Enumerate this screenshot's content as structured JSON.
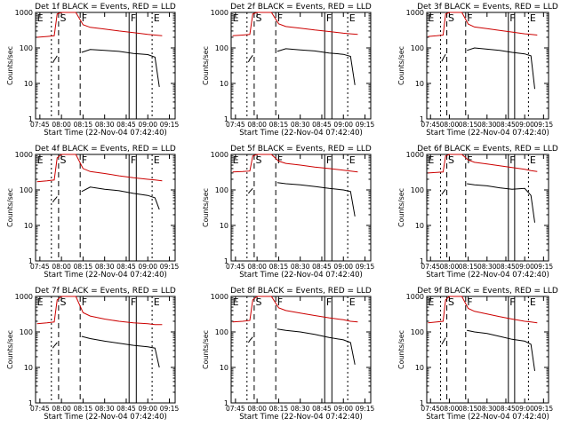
{
  "chart_data": [
    {
      "type": "line",
      "title": "Det 1f BLACK = Events, RED = LLD",
      "xlabel": "Start Time (22-Nov-04 07:42:40)",
      "ylabel": "Counts/sec",
      "ylog": true,
      "ylim": [
        1,
        1000
      ],
      "xticks": [
        "07:45",
        "08:00",
        "08:15",
        "08:30",
        "08:45",
        "09:00",
        "09:15"
      ],
      "yticks": [
        "1",
        "10",
        "100",
        "1000"
      ],
      "regions": [
        "E",
        "S",
        "F",
        "F",
        "E"
      ],
      "series": [
        {
          "color": "#000000",
          "x": [
            "07:54",
            "07:55",
            "07:56",
            "07:57"
          ],
          "y": [
            38,
            45,
            52,
            60
          ]
        },
        {
          "color": "#000000",
          "x": [
            "08:14",
            "08:20",
            "08:30",
            "08:40",
            "08:50",
            "09:00",
            "09:05",
            "09:08"
          ],
          "y": [
            75,
            90,
            85,
            80,
            70,
            65,
            55,
            8
          ]
        },
        {
          "color": "#cc0000",
          "x": [
            "07:43",
            "07:50",
            "07:55",
            "07:57",
            "08:00",
            "08:05",
            "08:10",
            "08:15",
            "08:20",
            "08:30",
            "08:40",
            "08:50",
            "09:00",
            "09:05",
            "09:10"
          ],
          "y": [
            200,
            210,
            220,
            900,
            1000,
            1000,
            1000,
            450,
            380,
            340,
            300,
            270,
            240,
            230,
            220
          ]
        }
      ]
    },
    {
      "type": "line",
      "title": "Det 2f BLACK = Events, RED = LLD",
      "xlabel": "Start Time (22-Nov-04 07:42:40)",
      "ylabel": "Counts/sec",
      "ylog": true,
      "ylim": [
        1,
        1000
      ],
      "xticks": [
        "07:45",
        "08:00",
        "08:15",
        "08:30",
        "08:45",
        "09:00",
        "09:15"
      ],
      "yticks": [
        "1",
        "10",
        "100",
        "1000"
      ],
      "regions": [
        "E",
        "S",
        "F",
        "F",
        "E"
      ],
      "series": [
        {
          "color": "#000000",
          "x": [
            "07:54",
            "07:55",
            "07:56",
            "07:57"
          ],
          "y": [
            40,
            48,
            55,
            62
          ]
        },
        {
          "color": "#000000",
          "x": [
            "08:14",
            "08:20",
            "08:30",
            "08:40",
            "08:50",
            "09:00",
            "09:05",
            "09:08"
          ],
          "y": [
            80,
            95,
            88,
            82,
            72,
            66,
            58,
            9
          ]
        },
        {
          "color": "#cc0000",
          "x": [
            "07:43",
            "07:50",
            "07:55",
            "07:57",
            "08:00",
            "08:05",
            "08:10",
            "08:15",
            "08:20",
            "08:30",
            "08:40",
            "08:50",
            "09:00",
            "09:05",
            "09:10"
          ],
          "y": [
            220,
            230,
            240,
            900,
            1000,
            1000,
            1000,
            480,
            400,
            360,
            320,
            290,
            260,
            250,
            240
          ]
        }
      ]
    },
    {
      "type": "line",
      "title": "Det 3f BLACK = Events, RED = LLD",
      "xlabel": "Start Time (22-Nov-04 07:42:40)",
      "ylabel": "Counts/sec",
      "ylog": true,
      "ylim": [
        1,
        1000
      ],
      "xticks": [
        "07:45",
        "08:00",
        "08:15",
        "08:30",
        "08:45",
        "09:00",
        "09:15"
      ],
      "yticks": [
        "1",
        "10",
        "100",
        "1000"
      ],
      "regions": [
        "E",
        "S",
        "F",
        "F",
        "E"
      ],
      "series": [
        {
          "color": "#000000",
          "x": [
            "07:54",
            "07:55",
            "07:56",
            "07:57"
          ],
          "y": [
            42,
            50,
            58,
            66
          ]
        },
        {
          "color": "#000000",
          "x": [
            "08:14",
            "08:20",
            "08:30",
            "08:40",
            "08:50",
            "09:00",
            "09:05",
            "09:08"
          ],
          "y": [
            85,
            100,
            92,
            85,
            75,
            68,
            60,
            7
          ]
        },
        {
          "color": "#cc0000",
          "x": [
            "07:43",
            "07:50",
            "07:55",
            "07:57",
            "08:00",
            "08:05",
            "08:10",
            "08:15",
            "08:20",
            "08:30",
            "08:40",
            "08:50",
            "09:00",
            "09:05",
            "09:10"
          ],
          "y": [
            210,
            220,
            230,
            900,
            1000,
            1000,
            1000,
            470,
            390,
            350,
            310,
            280,
            250,
            240,
            230
          ]
        }
      ]
    },
    {
      "type": "line",
      "title": "Det 4f BLACK = Events, RED = LLD",
      "xlabel": "Start Time (22-Nov-04 07:42:40)",
      "ylabel": "Counts/sec",
      "ylog": true,
      "ylim": [
        1,
        1000
      ],
      "xticks": [
        "07:45",
        "08:00",
        "08:15",
        "08:30",
        "08:45",
        "09:00",
        "09:15"
      ],
      "yticks": [
        "1",
        "10",
        "100",
        "1000"
      ],
      "regions": [
        "E",
        "S",
        "F",
        "F",
        "E"
      ],
      "series": [
        {
          "color": "#000000",
          "x": [
            "07:54",
            "07:55",
            "07:56",
            "07:57"
          ],
          "y": [
            45,
            52,
            58,
            65
          ]
        },
        {
          "color": "#000000",
          "x": [
            "08:14",
            "08:20",
            "08:30",
            "08:40",
            "08:50",
            "09:00",
            "09:05",
            "09:08"
          ],
          "y": [
            90,
            120,
            105,
            95,
            80,
            70,
            60,
            28
          ]
        },
        {
          "color": "#cc0000",
          "x": [
            "07:43",
            "07:50",
            "07:55",
            "07:57",
            "08:00",
            "08:05",
            "08:10",
            "08:15",
            "08:20",
            "08:30",
            "08:40",
            "08:50",
            "09:00",
            "09:05",
            "09:10"
          ],
          "y": [
            170,
            180,
            190,
            800,
            1000,
            1000,
            1000,
            400,
            330,
            290,
            250,
            220,
            200,
            190,
            180
          ]
        }
      ]
    },
    {
      "type": "line",
      "title": "Det 5f BLACK = Events, RED = LLD",
      "xlabel": "Start Time (22-Nov-04 07:42:40)",
      "ylabel": "Counts/sec",
      "ylog": true,
      "ylim": [
        1,
        1000
      ],
      "xticks": [
        "07:45",
        "08:00",
        "08:15",
        "08:30",
        "08:45",
        "09:00",
        "09:15"
      ],
      "yticks": [
        "1",
        "10",
        "100",
        "1000"
      ],
      "regions": [
        "E",
        "S",
        "F",
        "F",
        "E"
      ],
      "series": [
        {
          "color": "#000000",
          "x": [
            "07:54",
            "07:55",
            "07:56",
            "07:57"
          ],
          "y": [
            80,
            90,
            100,
            110
          ]
        },
        {
          "color": "#000000",
          "x": [
            "08:14",
            "08:20",
            "08:30",
            "08:40",
            "08:50",
            "09:00",
            "09:05",
            "09:08"
          ],
          "y": [
            160,
            150,
            140,
            125,
            110,
            100,
            90,
            18
          ]
        },
        {
          "color": "#cc0000",
          "x": [
            "07:43",
            "07:50",
            "07:55",
            "07:57",
            "08:00",
            "08:05",
            "08:10",
            "08:15",
            "08:20",
            "08:30",
            "08:40",
            "08:50",
            "09:00",
            "09:05",
            "09:10"
          ],
          "y": [
            320,
            330,
            340,
            900,
            1000,
            1000,
            1000,
            650,
            560,
            500,
            440,
            400,
            360,
            340,
            320
          ]
        }
      ]
    },
    {
      "type": "line",
      "title": "Det 6f BLACK = Events, RED = LLD",
      "xlabel": "Start Time (22-Nov-04 07:42:40)",
      "ylabel": "Counts/sec",
      "ylog": true,
      "ylim": [
        1,
        1000
      ],
      "xticks": [
        "07:45",
        "08:00",
        "08:15",
        "08:30",
        "08:45",
        "09:00",
        "09:15"
      ],
      "yticks": [
        "1",
        "10",
        "100",
        "1000"
      ],
      "regions": [
        "E",
        "S",
        "F",
        "F",
        "E"
      ],
      "series": [
        {
          "color": "#000000",
          "x": [
            "07:54",
            "07:55",
            "07:56",
            "07:57"
          ],
          "y": [
            75,
            85,
            95,
            105
          ]
        },
        {
          "color": "#000000",
          "x": [
            "08:14",
            "08:20",
            "08:30",
            "08:40",
            "08:50",
            "09:00",
            "09:05",
            "09:08"
          ],
          "y": [
            150,
            140,
            130,
            115,
            105,
            110,
            70,
            12
          ]
        },
        {
          "color": "#cc0000",
          "x": [
            "07:43",
            "07:50",
            "07:55",
            "07:57",
            "08:00",
            "08:05",
            "08:10",
            "08:15",
            "08:20",
            "08:30",
            "08:40",
            "08:50",
            "09:00",
            "09:05",
            "09:10"
          ],
          "y": [
            300,
            310,
            320,
            900,
            1000,
            1000,
            1000,
            700,
            600,
            540,
            480,
            430,
            380,
            350,
            330
          ]
        }
      ]
    },
    {
      "type": "line",
      "title": "Det 7f BLACK = Events, RED = LLD",
      "xlabel": "Start Time (22-Nov-04 07:42:40)",
      "ylabel": "Counts/sec",
      "ylog": true,
      "ylim": [
        1,
        1000
      ],
      "xticks": [
        "07:45",
        "08:00",
        "08:15",
        "08:30",
        "08:45",
        "09:00",
        "09:15"
      ],
      "yticks": [
        "1",
        "10",
        "100",
        "1000"
      ],
      "regions": [
        "E",
        "S",
        "F",
        "F",
        "E"
      ],
      "series": [
        {
          "color": "#000000",
          "x": [
            "07:54",
            "07:55",
            "07:56",
            "07:57"
          ],
          "y": [
            35,
            40,
            45,
            50
          ]
        },
        {
          "color": "#000000",
          "x": [
            "08:14",
            "08:20",
            "08:30",
            "08:40",
            "08:50",
            "09:00",
            "09:05",
            "09:08"
          ],
          "y": [
            75,
            65,
            55,
            48,
            42,
            38,
            35,
            10
          ]
        },
        {
          "color": "#cc0000",
          "x": [
            "07:43",
            "07:50",
            "07:55",
            "07:57",
            "08:00",
            "08:05",
            "08:10",
            "08:15",
            "08:20",
            "08:30",
            "08:40",
            "08:50",
            "09:00",
            "09:05",
            "09:10"
          ],
          "y": [
            170,
            180,
            190,
            800,
            1000,
            1000,
            1000,
            350,
            280,
            230,
            200,
            180,
            170,
            160,
            160
          ]
        }
      ]
    },
    {
      "type": "line",
      "title": "Det 8f BLACK = Events, RED = LLD",
      "xlabel": "Start Time (22-Nov-04 07:42:40)",
      "ylabel": "Counts/sec",
      "ylog": true,
      "ylim": [
        1,
        1000
      ],
      "xticks": [
        "07:45",
        "08:00",
        "08:15",
        "08:30",
        "08:45",
        "09:00",
        "09:15"
      ],
      "yticks": [
        "1",
        "10",
        "100",
        "1000"
      ],
      "regions": [
        "E",
        "S",
        "F",
        "F",
        "E"
      ],
      "series": [
        {
          "color": "#000000",
          "x": [
            "07:54",
            "07:55",
            "07:56",
            "07:57"
          ],
          "y": [
            50,
            58,
            65,
            72
          ]
        },
        {
          "color": "#000000",
          "x": [
            "08:14",
            "08:20",
            "08:30",
            "08:40",
            "08:50",
            "09:00",
            "09:05",
            "09:08"
          ],
          "y": [
            120,
            110,
            100,
            85,
            70,
            60,
            50,
            12
          ]
        },
        {
          "color": "#cc0000",
          "x": [
            "07:43",
            "07:50",
            "07:55",
            "07:57",
            "08:00",
            "08:05",
            "08:10",
            "08:15",
            "08:20",
            "08:30",
            "08:40",
            "08:50",
            "09:00",
            "09:05",
            "09:10"
          ],
          "y": [
            190,
            200,
            210,
            800,
            1000,
            1000,
            1000,
            480,
            400,
            340,
            290,
            250,
            220,
            200,
            190
          ]
        }
      ]
    },
    {
      "type": "line",
      "title": "Det 9f BLACK = Events, RED = LLD",
      "xlabel": "Start Time (22-Nov-04 07:42:40)",
      "ylabel": "Counts/sec",
      "ylog": true,
      "ylim": [
        1,
        1000
      ],
      "xticks": [
        "07:45",
        "08:00",
        "08:15",
        "08:30",
        "08:45",
        "09:00",
        "09:15"
      ],
      "yticks": [
        "1",
        "10",
        "100",
        "1000"
      ],
      "regions": [
        "E",
        "S",
        "F",
        "F",
        "E"
      ],
      "series": [
        {
          "color": "#000000",
          "x": [
            "07:54",
            "07:55",
            "07:56",
            "07:57"
          ],
          "y": [
            45,
            52,
            60,
            68
          ]
        },
        {
          "color": "#000000",
          "x": [
            "08:14",
            "08:20",
            "08:30",
            "08:40",
            "08:50",
            "09:00",
            "09:05",
            "09:08"
          ],
          "y": [
            110,
            100,
            90,
            75,
            62,
            55,
            45,
            8
          ]
        },
        {
          "color": "#cc0000",
          "x": [
            "07:43",
            "07:50",
            "07:55",
            "07:57",
            "08:00",
            "08:05",
            "08:10",
            "08:15",
            "08:20",
            "08:30",
            "08:40",
            "08:50",
            "09:00",
            "09:05",
            "09:10"
          ],
          "y": [
            180,
            190,
            200,
            800,
            1000,
            1000,
            1000,
            460,
            380,
            320,
            270,
            230,
            200,
            190,
            180
          ]
        }
      ]
    }
  ]
}
